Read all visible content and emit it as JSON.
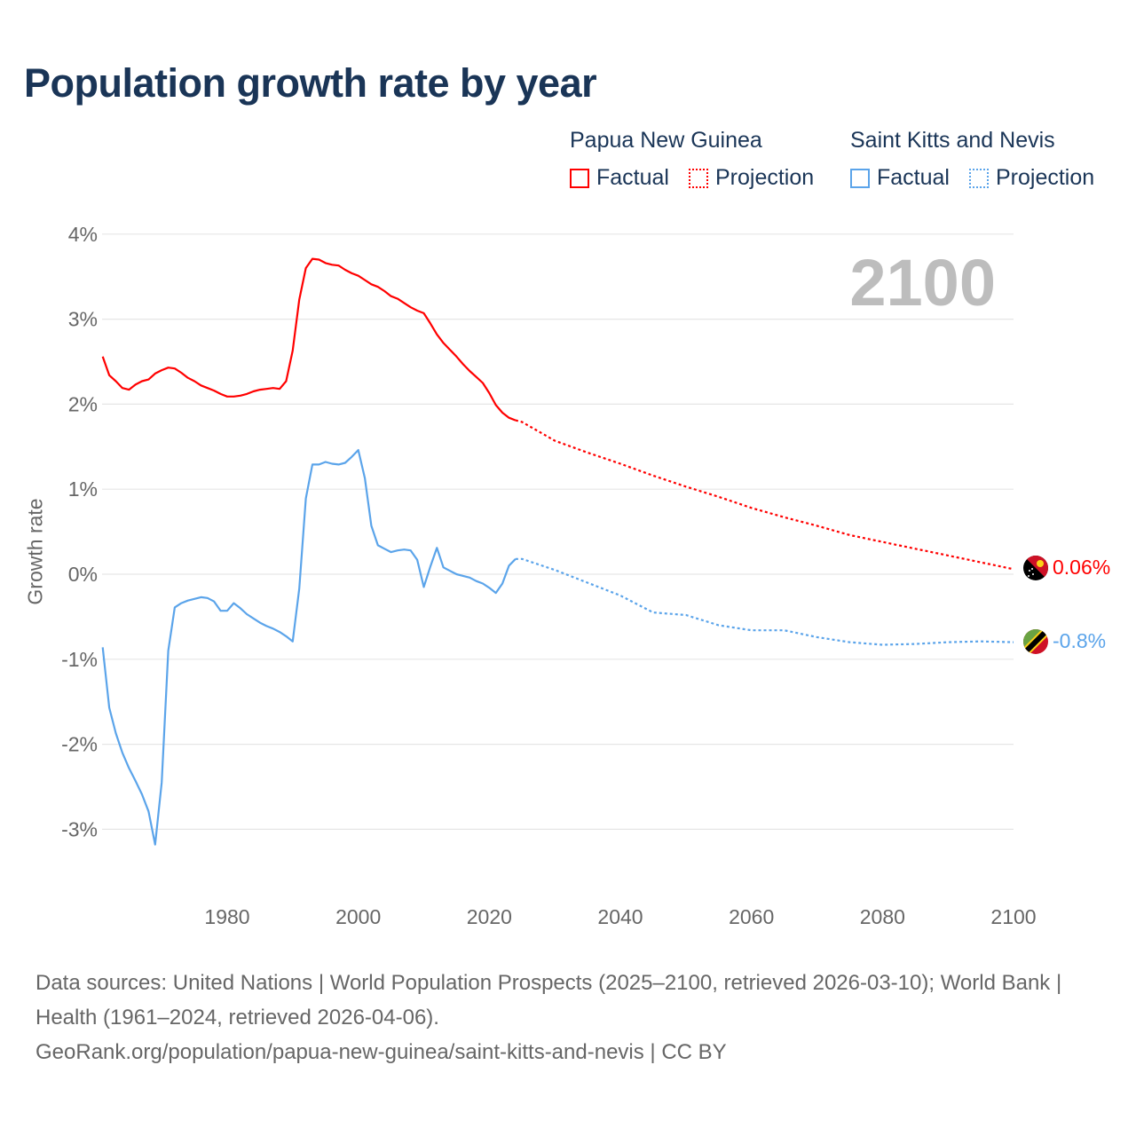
{
  "title": "Population growth rate by year",
  "current_year": "2100",
  "legend": {
    "png": {
      "country": "Papua New Guinea",
      "factual": "Factual",
      "projection": "Projection"
    },
    "skn": {
      "country": "Saint Kitts and Nevis",
      "factual": "Factual",
      "projection": "Projection"
    }
  },
  "colors": {
    "png": "#ff0000",
    "skn": "#5ba4ea",
    "grid": "#e6e6e6",
    "text": "#1a3557"
  },
  "footer": {
    "line1": "Data sources: United Nations | World Population Prospects (2025–2100, retrieved 2026-03-10); World Bank | Health (1961–2024, retrieved 2026-04-06).",
    "line2": "GeoRank.org/population/papua-new-guinea/saint-kitts-and-nevis | CC BY"
  },
  "chart_data": {
    "type": "line",
    "title": "Population growth rate by year",
    "xlabel": "",
    "ylabel": "Growth rate",
    "xlim": [
      1961,
      2100
    ],
    "ylim": [
      -3.5,
      4.2
    ],
    "xticks": [
      "1980",
      "2000",
      "2020",
      "2040",
      "2060",
      "2080",
      "2100"
    ],
    "xtick_values": [
      1980,
      2000,
      2020,
      2040,
      2060,
      2080,
      2100
    ],
    "yticks": [
      "4%",
      "3%",
      "2%",
      "1%",
      "0%",
      "-1%",
      "-2%",
      "-3%"
    ],
    "ytick_values": [
      4,
      3,
      2,
      1,
      0,
      -1,
      -2,
      -3
    ],
    "grid": true,
    "series": [
      {
        "name": "Papua New Guinea",
        "end_label": "0.06%",
        "factual": {
          "start_year": 1961,
          "values": [
            2.56,
            2.34,
            2.27,
            2.19,
            2.17,
            2.23,
            2.27,
            2.29,
            2.36,
            2.4,
            2.43,
            2.42,
            2.37,
            2.31,
            2.27,
            2.22,
            2.19,
            2.16,
            2.12,
            2.09,
            2.09,
            2.1,
            2.12,
            2.15,
            2.17,
            2.18,
            2.19,
            2.18,
            2.27,
            2.63,
            3.23,
            3.6,
            3.71,
            3.7,
            3.66,
            3.64,
            3.63,
            3.58,
            3.54,
            3.51,
            3.46,
            3.41,
            3.38,
            3.33,
            3.27,
            3.24,
            3.19,
            3.14,
            3.1,
            3.07,
            2.95,
            2.82,
            2.72,
            2.64,
            2.56,
            2.47,
            2.39,
            2.32,
            2.25,
            2.13,
            1.99,
            1.9,
            1.84,
            1.81
          ]
        },
        "projection": {
          "years": [
            2024,
            2025,
            2030,
            2035,
            2040,
            2045,
            2050,
            2055,
            2060,
            2065,
            2070,
            2075,
            2080,
            2085,
            2090,
            2095,
            2100
          ],
          "values": [
            1.81,
            1.79,
            1.57,
            1.43,
            1.3,
            1.16,
            1.03,
            0.91,
            0.78,
            0.67,
            0.57,
            0.46,
            0.38,
            0.3,
            0.22,
            0.14,
            0.06
          ]
        }
      },
      {
        "name": "Saint Kitts and Nevis",
        "end_label": "-0.8%",
        "factual": {
          "start_year": 1961,
          "values": [
            -0.86,
            -1.57,
            -1.87,
            -2.1,
            -2.28,
            -2.43,
            -2.59,
            -2.79,
            -3.18,
            -2.45,
            -0.9,
            -0.39,
            -0.34,
            -0.31,
            -0.29,
            -0.27,
            -0.28,
            -0.32,
            -0.43,
            -0.43,
            -0.34,
            -0.4,
            -0.47,
            -0.52,
            -0.57,
            -0.61,
            -0.64,
            -0.68,
            -0.73,
            -0.79,
            -0.17,
            0.89,
            1.29,
            1.29,
            1.32,
            1.3,
            1.29,
            1.31,
            1.38,
            1.46,
            1.13,
            0.57,
            0.34,
            0.3,
            0.26,
            0.28,
            0.29,
            0.28,
            0.17,
            -0.15,
            0.09,
            0.31,
            0.08,
            0.04,
            0.0,
            -0.02,
            -0.04,
            -0.08,
            -0.11,
            -0.16,
            -0.22,
            -0.11,
            0.1,
            0.18
          ]
        },
        "projection": {
          "years": [
            2024,
            2025,
            2030,
            2035,
            2040,
            2045,
            2050,
            2055,
            2060,
            2065,
            2070,
            2075,
            2080,
            2085,
            2090,
            2095,
            2100
          ],
          "values": [
            0.18,
            0.18,
            0.05,
            -0.1,
            -0.25,
            -0.45,
            -0.48,
            -0.6,
            -0.66,
            -0.66,
            -0.74,
            -0.8,
            -0.83,
            -0.82,
            -0.8,
            -0.79,
            -0.8
          ]
        }
      }
    ]
  }
}
